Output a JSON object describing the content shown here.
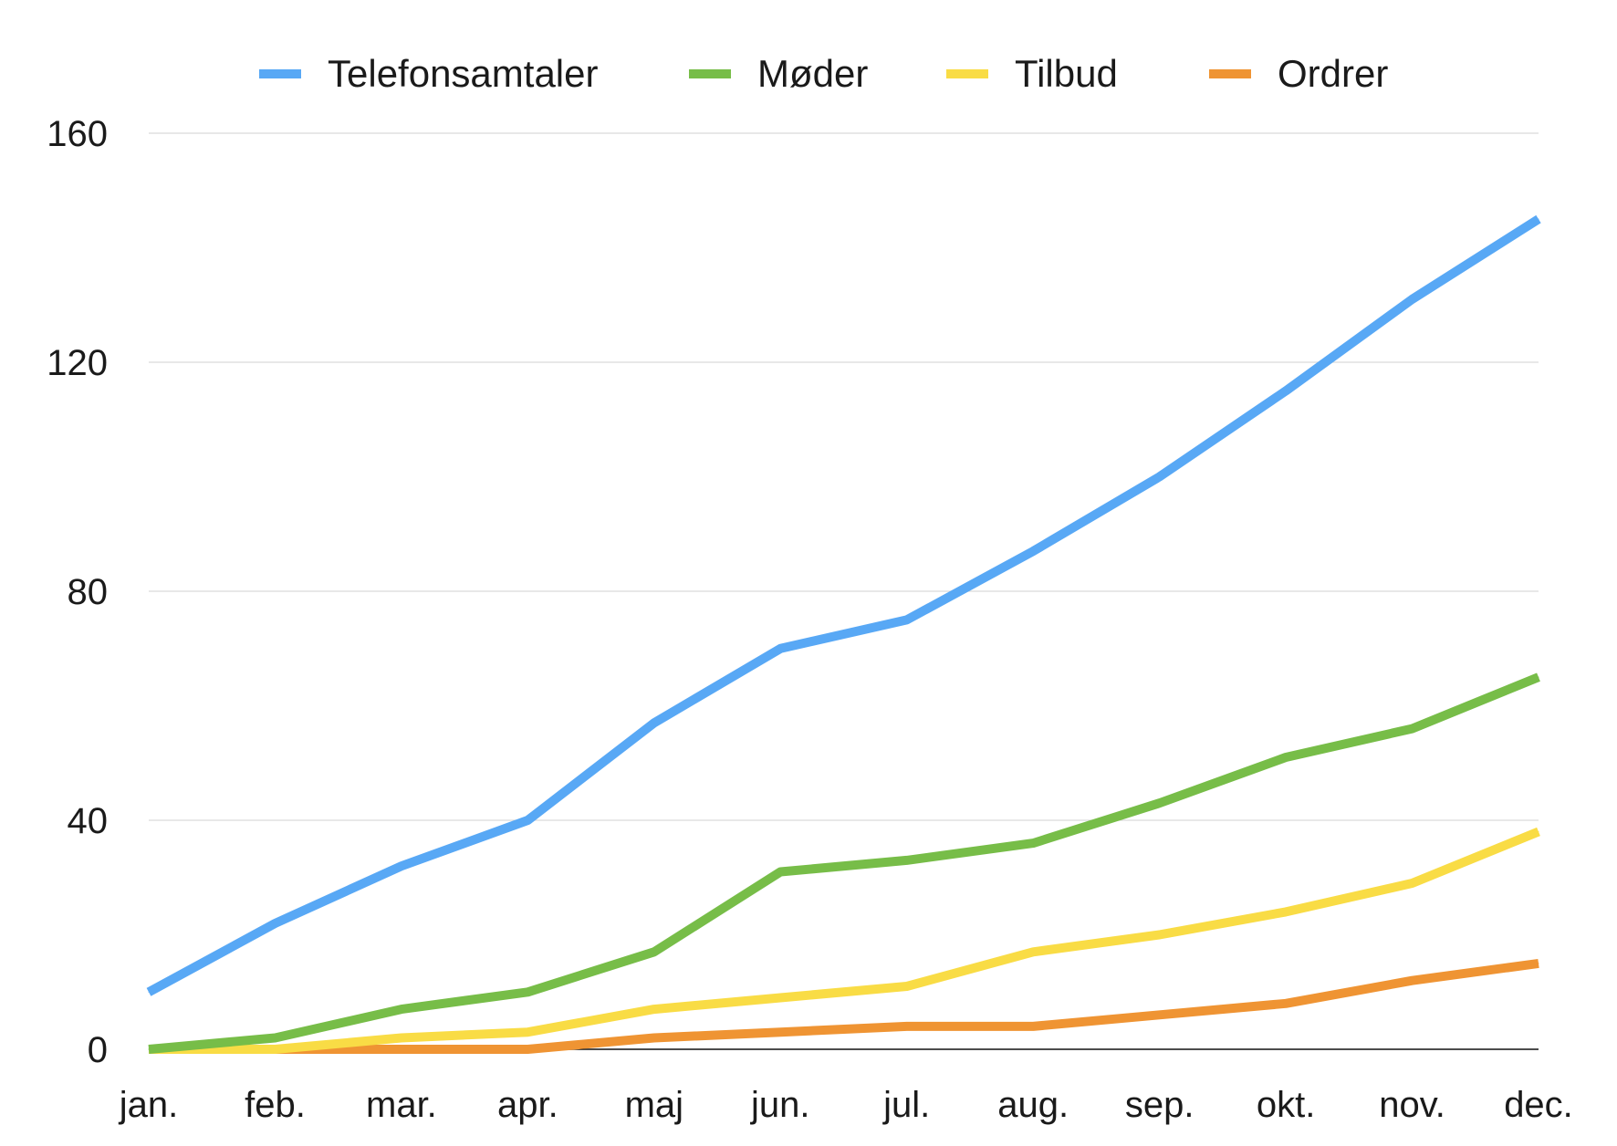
{
  "chart_data": {
    "type": "line",
    "title": "",
    "xlabel": "",
    "ylabel": "",
    "categories": [
      "jan.",
      "feb.",
      "mar.",
      "apr.",
      "maj",
      "jun.",
      "jul.",
      "aug.",
      "sep.",
      "okt.",
      "nov.",
      "dec."
    ],
    "ylim": [
      0,
      160
    ],
    "yticks": [
      0,
      40,
      80,
      120,
      160
    ],
    "grid": true,
    "legend_position": "top",
    "series": [
      {
        "name": "Telefonsamtaler",
        "color": "#58a8f5",
        "values": [
          10,
          22,
          32,
          40,
          57,
          70,
          75,
          87,
          100,
          115,
          131,
          145
        ]
      },
      {
        "name": "Møder",
        "color": "#77bd48",
        "values": [
          0,
          2,
          7,
          10,
          17,
          31,
          33,
          36,
          43,
          51,
          56,
          65
        ]
      },
      {
        "name": "Tilbud",
        "color": "#f9dc45",
        "values": [
          0,
          0,
          2,
          3,
          7,
          9,
          11,
          17,
          20,
          24,
          29,
          38
        ]
      },
      {
        "name": "Ordrer",
        "color": "#ef9433",
        "values": [
          0,
          0,
          0,
          0,
          2,
          3,
          4,
          4,
          6,
          8,
          12,
          15
        ]
      }
    ]
  }
}
